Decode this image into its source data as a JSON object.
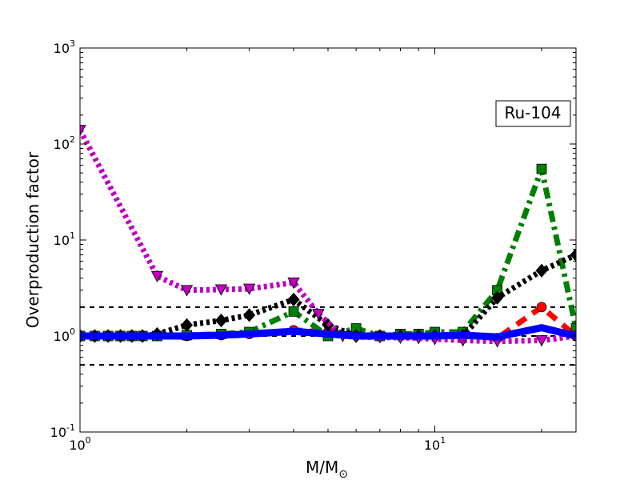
{
  "chart_data": {
    "type": "line",
    "title": "",
    "xlabel": "M/M",
    "xlabel_subscript": "⊙",
    "ylabel": "Overproduction factor",
    "xscale": "log",
    "yscale": "log",
    "xlim": [
      1,
      25
    ],
    "ylim": [
      0.1,
      1000
    ],
    "x_ticks": [
      {
        "value": 1,
        "base": "10",
        "exp": "0"
      },
      {
        "value": 10,
        "base": "10",
        "exp": "1"
      }
    ],
    "y_ticks": [
      {
        "value": 0.1,
        "base": "10",
        "exp": "-1"
      },
      {
        "value": 1,
        "base": "10",
        "exp": "0"
      },
      {
        "value": 10,
        "base": "10",
        "exp": "1"
      },
      {
        "value": 100,
        "base": "10",
        "exp": "2"
      },
      {
        "value": 1000,
        "base": "10",
        "exp": "3"
      }
    ],
    "annotation": "Ru-104",
    "annotation_position": "top-right",
    "grid": false,
    "reference_lines": [
      {
        "y": 2,
        "style": "dashed",
        "color": "#000000"
      },
      {
        "y": 1,
        "style": "dashed",
        "color": "#000000"
      },
      {
        "y": 0.5,
        "style": "dashed",
        "color": "#000000"
      }
    ],
    "series": [
      {
        "color": "#ff0000",
        "dash": "dashed",
        "marker": "circle",
        "x": [
          1,
          1.1,
          1.2,
          1.3,
          1.4,
          1.5,
          1.65,
          2,
          2.5,
          3,
          4,
          5,
          6,
          7,
          8,
          9,
          10,
          12,
          15,
          20,
          25
        ],
        "y": [
          1.0,
          1.0,
          1.0,
          1.0,
          1.0,
          1.0,
          1.0,
          1.0,
          1.02,
          1.05,
          1.15,
          1.1,
          1.05,
          1.0,
          1.0,
          1.0,
          1.0,
          1.0,
          0.95,
          2.0,
          1.0
        ]
      },
      {
        "color": "#008000",
        "dash": "dashdot",
        "marker": "square",
        "x": [
          1,
          1.1,
          1.2,
          1.3,
          1.4,
          1.5,
          1.65,
          2,
          2.5,
          3,
          4,
          5,
          6,
          7,
          8,
          9,
          10,
          12,
          15,
          20,
          25
        ],
        "y": [
          1.0,
          1.0,
          1.0,
          1.0,
          1.0,
          1.0,
          1.0,
          1.02,
          1.05,
          1.1,
          1.8,
          1.0,
          1.2,
          1.0,
          1.05,
          1.05,
          1.1,
          1.1,
          3.0,
          55,
          1.2
        ]
      },
      {
        "color": "#000000",
        "dash": "dotted",
        "marker": "diamond",
        "x": [
          1,
          1.1,
          1.2,
          1.3,
          1.4,
          1.5,
          1.65,
          2,
          2.5,
          3,
          4,
          5,
          6,
          7,
          8,
          9,
          10,
          12,
          15,
          20,
          25
        ],
        "y": [
          1.0,
          1.0,
          1.0,
          1.0,
          1.0,
          1.0,
          1.05,
          1.3,
          1.45,
          1.65,
          2.4,
          1.3,
          1.0,
          1.0,
          1.0,
          1.0,
          1.0,
          1.0,
          2.5,
          4.8,
          7.0
        ]
      },
      {
        "color": "#bf00bf",
        "dash": "dotted",
        "marker": "triangle-down",
        "x": [
          1,
          1.65,
          2,
          2.5,
          3,
          4,
          4.7,
          5.5,
          6,
          7,
          8,
          9,
          10,
          12,
          15,
          20,
          25
        ],
        "y": [
          140,
          4.2,
          3.0,
          3.05,
          3.1,
          3.6,
          1.7,
          1.0,
          0.98,
          0.97,
          0.96,
          0.95,
          0.93,
          0.9,
          0.88,
          0.9,
          1.0
        ]
      },
      {
        "color": "#0000ff",
        "dash": "solid",
        "marker": "none",
        "x": [
          1,
          1.5,
          2,
          2.5,
          3,
          4,
          5,
          6,
          7,
          8,
          10,
          12,
          15,
          20,
          25
        ],
        "y": [
          1.0,
          1.0,
          1.0,
          1.02,
          1.05,
          1.12,
          1.05,
          1.0,
          1.0,
          1.0,
          1.0,
          1.02,
          0.98,
          1.22,
          1.0
        ]
      }
    ]
  }
}
